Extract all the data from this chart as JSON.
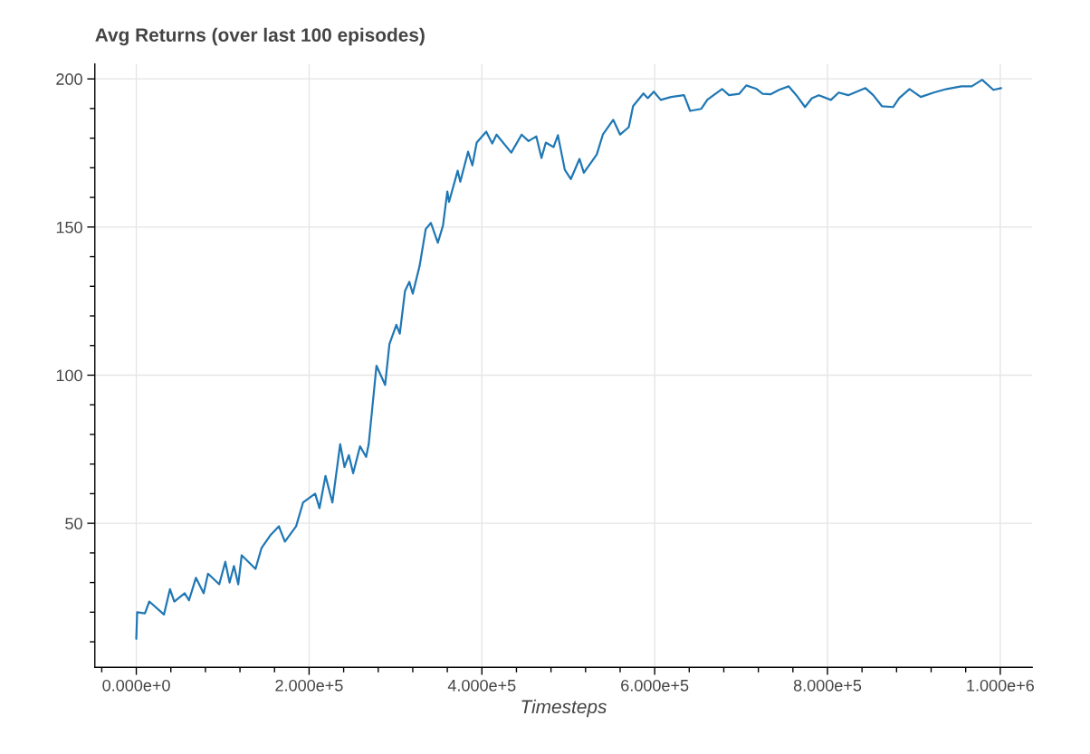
{
  "chart_data": {
    "type": "line",
    "title": "Avg Returns (over last 100 episodes)",
    "xlabel": "Timesteps",
    "x": [
      0,
      1000,
      10000,
      15000,
      32000,
      39000,
      44000,
      56000,
      61000,
      69000,
      78000,
      83000,
      96000,
      103000,
      108000,
      113000,
      118000,
      122000,
      138000,
      145000,
      155000,
      165000,
      172000,
      185000,
      193000,
      207000,
      212000,
      219000,
      227000,
      236000,
      241000,
      246000,
      251000,
      259000,
      266000,
      269000,
      278000,
      288000,
      293000,
      301000,
      305000,
      311000,
      316000,
      320000,
      328000,
      335000,
      341000,
      349000,
      355000,
      360000,
      362000,
      372000,
      375000,
      384000,
      389000,
      394000,
      405000,
      412000,
      417000,
      434000,
      446000,
      454000,
      463000,
      469000,
      474000,
      483000,
      488000,
      496000,
      503000,
      513000,
      518000,
      533000,
      540000,
      552000,
      560000,
      570000,
      575000,
      587000,
      592000,
      599000,
      607000,
      619000,
      634000,
      641000,
      654000,
      661000,
      678000,
      686000,
      698000,
      706000,
      718000,
      725000,
      734000,
      744000,
      755000,
      764000,
      774000,
      782000,
      790000,
      804000,
      813000,
      824000,
      844000,
      853000,
      863000,
      876000,
      883000,
      895000,
      908000,
      923000,
      938000,
      955000,
      967000,
      979000,
      992000,
      1001000
    ],
    "series": [
      {
        "color": "#1f77b4",
        "values": [
          11,
          20,
          19.6,
          23.6,
          19.2,
          27.8,
          23.6,
          26.4,
          24,
          31.6,
          26.4,
          33,
          29.4,
          37,
          30,
          35.6,
          29.4,
          39.2,
          34.6,
          41.7,
          45.9,
          49,
          43.8,
          49,
          57,
          60,
          55.1,
          66,
          57,
          76.7,
          69,
          73,
          66.9,
          76,
          72.4,
          76.7,
          103.2,
          96.7,
          110.5,
          117,
          114,
          128.4,
          131.5,
          127.5,
          137,
          149.3,
          151.4,
          144.7,
          150.5,
          162,
          158.5,
          169,
          165.3,
          175.4,
          170.8,
          178.5,
          182.2,
          178.2,
          181.2,
          175.1,
          181.2,
          179,
          180.6,
          173.3,
          178.5,
          177,
          181,
          169.3,
          166.2,
          173,
          168.3,
          174.5,
          181.2,
          186.2,
          181.2,
          183.7,
          190.8,
          195.1,
          193.5,
          195.7,
          192.9,
          193.9,
          194.5,
          189.2,
          189.9,
          193,
          196.6,
          194.5,
          195,
          197.8,
          196.6,
          195,
          194.8,
          196.3,
          197.5,
          194.5,
          190.5,
          193.5,
          194.5,
          192.9,
          195.4,
          194.5,
          196.9,
          194.5,
          190.8,
          190.5,
          193.5,
          196.6,
          193.9,
          195.4,
          196.6,
          197.5,
          197.5,
          199.7,
          196.3,
          196.9
        ]
      }
    ],
    "xlim": [
      -48000,
      1037000
    ],
    "ylim": [
      1.4,
      205
    ],
    "xticks": [
      {
        "value": 0,
        "label": "0.000e+0"
      },
      {
        "value": 200000,
        "label": "2.000e+5"
      },
      {
        "value": 400000,
        "label": "4.000e+5"
      },
      {
        "value": 600000,
        "label": "6.000e+5"
      },
      {
        "value": 800000,
        "label": "8.000e+5"
      },
      {
        "value": 1000000,
        "label": "1.000e+6"
      }
    ],
    "yticks": [
      50,
      100,
      150,
      200
    ],
    "grid": true,
    "line_style": "solid",
    "marker": "none"
  }
}
